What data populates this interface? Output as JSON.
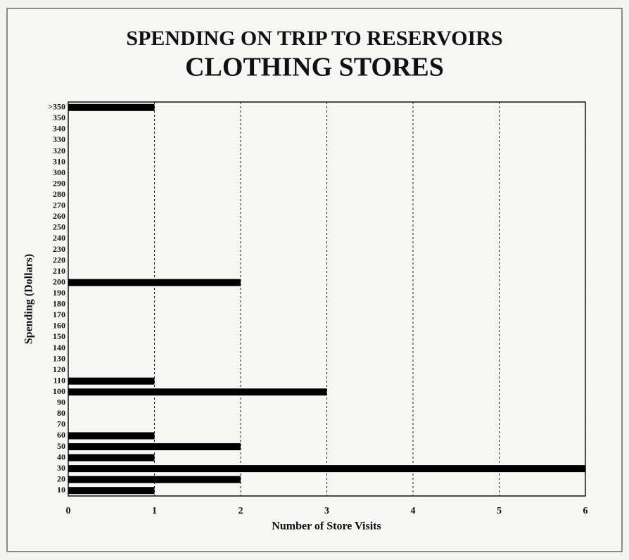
{
  "chart_data": {
    "type": "barh",
    "title": "SPENDING ON TRIP TO RESERVOIRS",
    "subtitle": "CLOTHING STORES",
    "xlabel": "Number of Store Visits",
    "ylabel": "Spending (Dollars)",
    "categories": [
      "10",
      "20",
      "30",
      "40",
      "50",
      "60",
      "70",
      "80",
      "90",
      "100",
      "110",
      "120",
      "130",
      "140",
      "150",
      "160",
      "170",
      "180",
      "190",
      "200",
      "210",
      "220",
      "230",
      "240",
      "250",
      "260",
      "270",
      "280",
      "290",
      "300",
      "310",
      "320",
      "330",
      "340",
      "350",
      ">350"
    ],
    "values": [
      1,
      2,
      6,
      1,
      2,
      1,
      0,
      0,
      0,
      3,
      1,
      0,
      0,
      0,
      0,
      0,
      0,
      0,
      0,
      2,
      0,
      0,
      0,
      0,
      0,
      0,
      0,
      0,
      0,
      0,
      0,
      0,
      0,
      0,
      0,
      1
    ],
    "color": "#000000",
    "xlim": [
      0,
      6
    ],
    "xticks": [
      0,
      1,
      2,
      3,
      4,
      5,
      6
    ],
    "grid": true
  }
}
